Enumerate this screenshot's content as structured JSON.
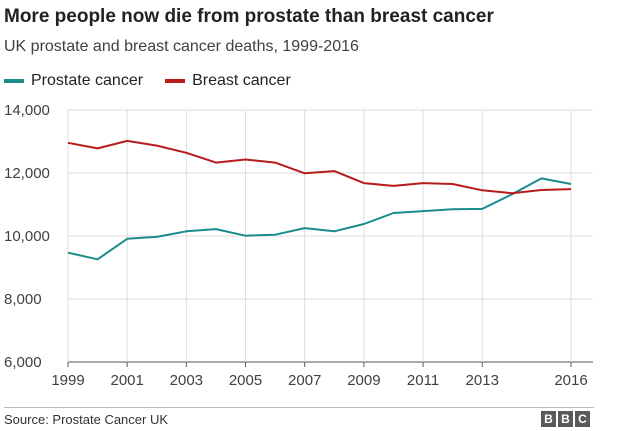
{
  "chart_data": {
    "type": "line",
    "title": "More people now die from prostate than breast cancer",
    "subtitle": "UK prostate and breast cancer deaths, 1999-2016",
    "x": [
      1999,
      2000,
      2001,
      2002,
      2003,
      2004,
      2005,
      2006,
      2007,
      2008,
      2009,
      2010,
      2011,
      2012,
      2013,
      2014,
      2015,
      2016
    ],
    "xlim": [
      1999,
      2016
    ],
    "ylim": [
      6000,
      14000
    ],
    "x_ticks": [
      "1999",
      "2001",
      "2003",
      "2005",
      "2007",
      "2009",
      "2011",
      "2013",
      "2016"
    ],
    "x_tick_values": [
      1999,
      2001,
      2003,
      2005,
      2007,
      2009,
      2011,
      2013,
      2016
    ],
    "y_ticks": [
      "6,000",
      "8,000",
      "10,000",
      "12,000",
      "14,000"
    ],
    "y_tick_values": [
      6000,
      8000,
      10000,
      12000,
      14000
    ],
    "grid": true,
    "legend_position": "top-left",
    "series": [
      {
        "name": "Prostate cancer",
        "color": "#1a8c8c",
        "values": [
          9470,
          9260,
          9910,
          9970,
          10150,
          10220,
          10010,
          10040,
          10250,
          10150,
          10380,
          10730,
          10790,
          10850,
          10860,
          11320,
          11830,
          11650
        ]
      },
      {
        "name": "Breast cancer",
        "color": "#b81b1b",
        "values": [
          12960,
          12780,
          13020,
          12870,
          12640,
          12330,
          12430,
          12330,
          11990,
          12060,
          11680,
          11590,
          11680,
          11650,
          11450,
          11360,
          11460,
          11490
        ]
      }
    ]
  },
  "footer": {
    "source": "Source: Prostate Cancer UK",
    "logo_letters": [
      "B",
      "B",
      "C"
    ]
  }
}
